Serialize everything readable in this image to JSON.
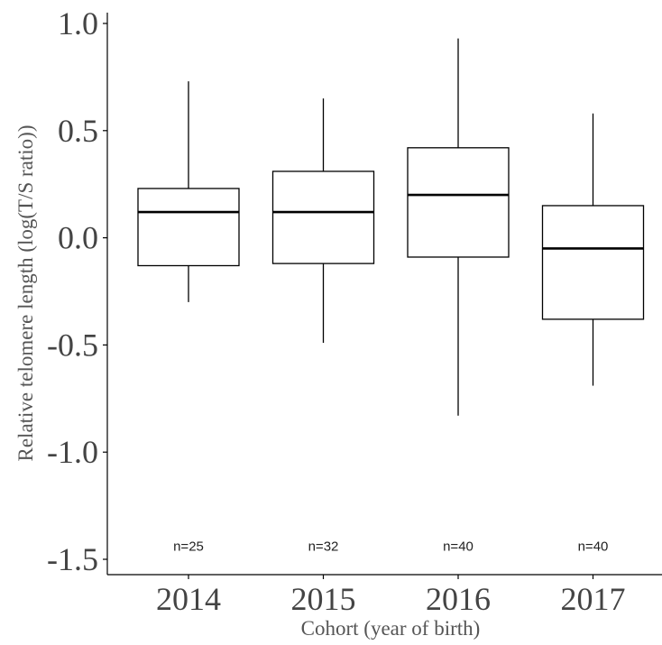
{
  "chart_data": {
    "type": "boxplot",
    "title": "",
    "xlabel": "Cohort (year of birth)",
    "ylabel": "Relative telomere length (log(T/S ratio))",
    "ylim": [
      -1.55,
      1.03
    ],
    "yticks": [
      1.0,
      0.5,
      0.0,
      -0.5,
      -1.0,
      -1.5
    ],
    "ytick_labels": [
      "1.0",
      "0.5",
      "0.0",
      "-0.5",
      "-1.0",
      "-1.5"
    ],
    "categories": [
      "2014",
      "2015",
      "2016",
      "2017"
    ],
    "grid": false,
    "legend": "none",
    "boxes": [
      {
        "category": "2014",
        "whisker_low": -0.3,
        "q1": -0.13,
        "median": 0.12,
        "q3": 0.23,
        "whisker_high": 0.73,
        "n_label": "n=25"
      },
      {
        "category": "2015",
        "whisker_low": -0.49,
        "q1": -0.12,
        "median": 0.12,
        "q3": 0.31,
        "whisker_high": 0.65,
        "n_label": "n=32"
      },
      {
        "category": "2016",
        "whisker_low": -0.83,
        "q1": -0.09,
        "median": 0.2,
        "q3": 0.42,
        "whisker_high": 0.93,
        "n_label": "n=40"
      },
      {
        "category": "2017",
        "whisker_low": -0.69,
        "q1": -0.38,
        "median": -0.05,
        "q3": 0.15,
        "whisker_high": 0.58,
        "n_label": "n=40"
      }
    ],
    "n_label_y": -1.44,
    "colors": {
      "box_fill": "#ffffff",
      "box_stroke": "#000000",
      "axis": "#000000"
    }
  }
}
